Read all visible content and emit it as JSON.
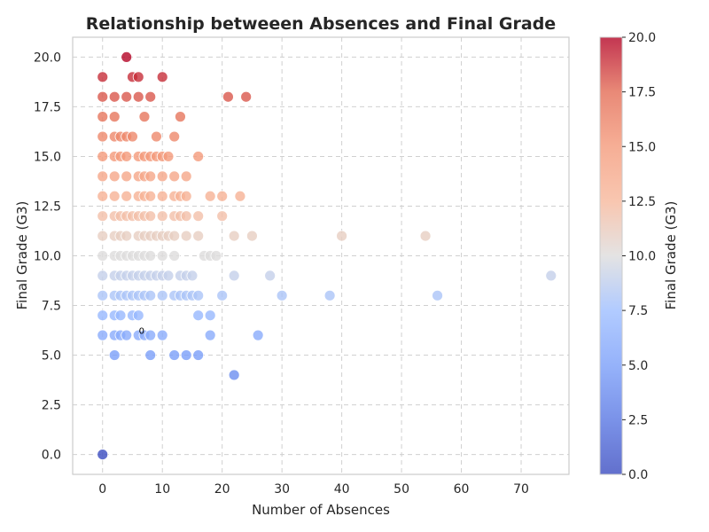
{
  "chart_data": {
    "type": "scatter",
    "title": "Relationship betweeen Absences and Final Grade",
    "xlabel": "Number of Absences",
    "ylabel": "Final Grade (G3)",
    "xlim": [
      -5,
      78
    ],
    "ylim": [
      -1,
      21
    ],
    "x_ticks": [
      0,
      10,
      20,
      30,
      40,
      50,
      60,
      70
    ],
    "y_ticks": [
      0.0,
      2.5,
      5.0,
      7.5,
      10.0,
      12.5,
      15.0,
      17.5,
      20.0
    ],
    "grid": true,
    "colormap": "coolwarm",
    "color_range": [
      0,
      20
    ],
    "colorbar": {
      "label": "Final Grade (G3)",
      "ticks": [
        0.0,
        2.5,
        5.0,
        7.5,
        10.0,
        12.5,
        15.0,
        17.5,
        20.0
      ]
    },
    "annotation": {
      "text": "0",
      "x": 6.5,
      "y": 6.2
    },
    "points": [
      [
        0,
        0
      ],
      [
        0,
        6
      ],
      [
        0,
        7
      ],
      [
        0,
        8
      ],
      [
        0,
        9
      ],
      [
        0,
        10
      ],
      [
        0,
        11
      ],
      [
        0,
        12
      ],
      [
        0,
        13
      ],
      [
        0,
        14
      ],
      [
        0,
        15
      ],
      [
        0,
        16
      ],
      [
        0,
        17
      ],
      [
        0,
        18
      ],
      [
        0,
        19
      ],
      [
        2,
        5
      ],
      [
        2,
        6
      ],
      [
        2,
        7
      ],
      [
        2,
        8
      ],
      [
        2,
        9
      ],
      [
        2,
        10
      ],
      [
        2,
        11
      ],
      [
        2,
        12
      ],
      [
        2,
        13
      ],
      [
        2,
        14
      ],
      [
        2,
        15
      ],
      [
        2,
        16
      ],
      [
        2,
        17
      ],
      [
        2,
        18
      ],
      [
        3,
        6
      ],
      [
        3,
        7
      ],
      [
        3,
        8
      ],
      [
        3,
        9
      ],
      [
        3,
        10
      ],
      [
        3,
        11
      ],
      [
        3,
        12
      ],
      [
        3,
        15
      ],
      [
        3,
        16
      ],
      [
        4,
        6
      ],
      [
        4,
        8
      ],
      [
        4,
        9
      ],
      [
        4,
        10
      ],
      [
        4,
        11
      ],
      [
        4,
        12
      ],
      [
        4,
        13
      ],
      [
        4,
        14
      ],
      [
        4,
        15
      ],
      [
        4,
        16
      ],
      [
        4,
        18
      ],
      [
        4,
        20
      ],
      [
        5,
        7
      ],
      [
        5,
        8
      ],
      [
        5,
        9
      ],
      [
        5,
        10
      ],
      [
        5,
        12
      ],
      [
        5,
        16
      ],
      [
        5,
        19
      ],
      [
        6,
        6
      ],
      [
        6,
        7
      ],
      [
        6,
        8
      ],
      [
        6,
        9
      ],
      [
        6,
        10
      ],
      [
        6,
        11
      ],
      [
        6,
        12
      ],
      [
        6,
        13
      ],
      [
        6,
        14
      ],
      [
        6,
        15
      ],
      [
        6,
        18
      ],
      [
        6,
        19
      ],
      [
        7,
        6
      ],
      [
        7,
        8
      ],
      [
        7,
        9
      ],
      [
        7,
        10
      ],
      [
        7,
        11
      ],
      [
        7,
        12
      ],
      [
        7,
        13
      ],
      [
        7,
        14
      ],
      [
        7,
        15
      ],
      [
        7,
        17
      ],
      [
        8,
        5
      ],
      [
        8,
        6
      ],
      [
        8,
        8
      ],
      [
        8,
        9
      ],
      [
        8,
        10
      ],
      [
        8,
        11
      ],
      [
        8,
        12
      ],
      [
        8,
        13
      ],
      [
        8,
        14
      ],
      [
        8,
        15
      ],
      [
        8,
        18
      ],
      [
        9,
        9
      ],
      [
        9,
        11
      ],
      [
        9,
        15
      ],
      [
        9,
        16
      ],
      [
        10,
        6
      ],
      [
        10,
        8
      ],
      [
        10,
        9
      ],
      [
        10,
        10
      ],
      [
        10,
        11
      ],
      [
        10,
        12
      ],
      [
        10,
        13
      ],
      [
        10,
        14
      ],
      [
        10,
        15
      ],
      [
        10,
        19
      ],
      [
        11,
        9
      ],
      [
        11,
        11
      ],
      [
        11,
        15
      ],
      [
        12,
        5
      ],
      [
        12,
        8
      ],
      [
        12,
        10
      ],
      [
        12,
        11
      ],
      [
        12,
        12
      ],
      [
        12,
        13
      ],
      [
        12,
        14
      ],
      [
        12,
        16
      ],
      [
        13,
        8
      ],
      [
        13,
        9
      ],
      [
        13,
        12
      ],
      [
        13,
        13
      ],
      [
        13,
        17
      ],
      [
        14,
        5
      ],
      [
        14,
        8
      ],
      [
        14,
        9
      ],
      [
        14,
        11
      ],
      [
        14,
        12
      ],
      [
        14,
        13
      ],
      [
        14,
        14
      ],
      [
        15,
        8
      ],
      [
        15,
        9
      ],
      [
        16,
        5
      ],
      [
        16,
        7
      ],
      [
        16,
        8
      ],
      [
        16,
        11
      ],
      [
        16,
        12
      ],
      [
        16,
        15
      ],
      [
        17,
        10
      ],
      [
        18,
        6
      ],
      [
        18,
        7
      ],
      [
        18,
        10
      ],
      [
        18,
        13
      ],
      [
        19,
        10
      ],
      [
        20,
        8
      ],
      [
        20,
        12
      ],
      [
        20,
        13
      ],
      [
        21,
        18
      ],
      [
        22,
        4
      ],
      [
        22,
        9
      ],
      [
        22,
        11
      ],
      [
        23,
        13
      ],
      [
        24,
        18
      ],
      [
        25,
        11
      ],
      [
        26,
        6
      ],
      [
        28,
        9
      ],
      [
        30,
        8
      ],
      [
        38,
        8
      ],
      [
        40,
        11
      ],
      [
        54,
        11
      ],
      [
        56,
        8
      ],
      [
        75,
        9
      ]
    ]
  }
}
